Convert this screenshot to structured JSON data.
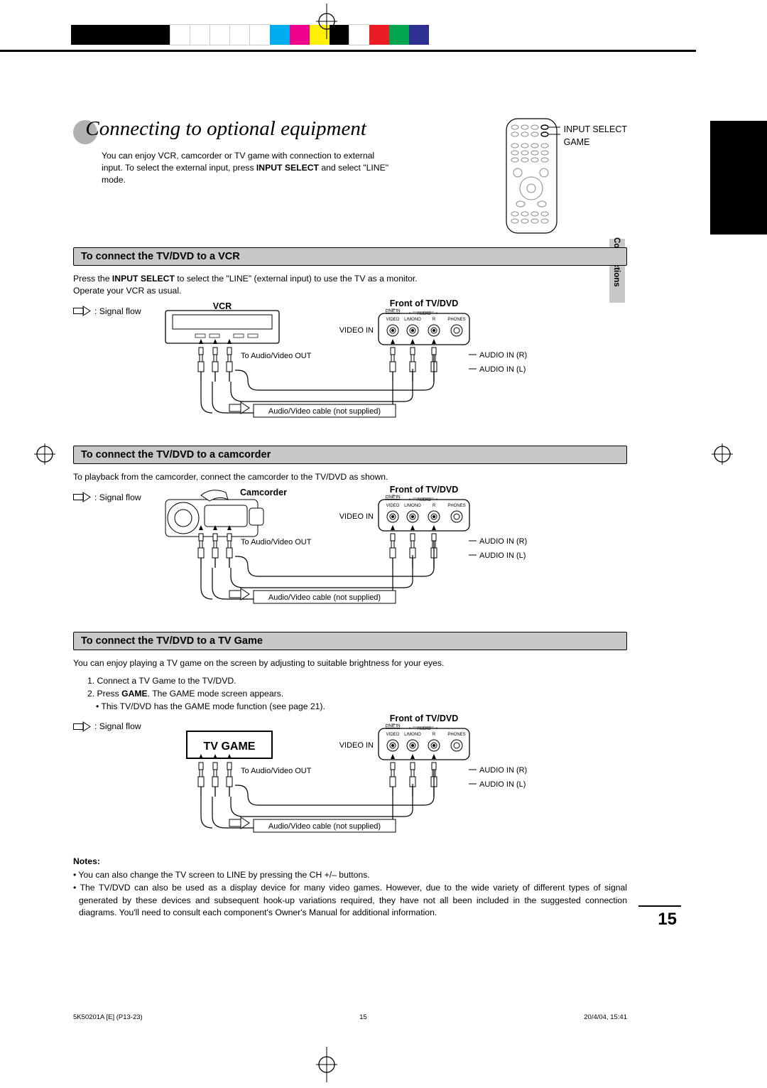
{
  "colorbar": [
    "#000000",
    "#000000",
    "#000000",
    "#000000",
    "#000000",
    "#ffffff",
    "#ffffff",
    "#ffffff",
    "#ffffff",
    "#ffffff",
    "#00adee",
    "#ed008c",
    "#fff100",
    "#000000",
    "#ffffff",
    "#ec1c24",
    "#00a551",
    "#2e3092"
  ],
  "title": "Connecting to optional equipment",
  "intro_lines": [
    "You can enjoy VCR, camcorder or TV game with connection to external",
    "input. To select the external input, press ",
    "INPUT SELECT",
    " and select \"LINE\"",
    "mode."
  ],
  "remote_labels": [
    "INPUT SELECT",
    "GAME"
  ],
  "section_tab": "Connections",
  "sec1": {
    "head": "To connect the TV/DVD to a VCR",
    "body_lines": [
      "Press the ",
      "INPUT SELECT",
      " to select the \"LINE\" (external input) to use the TV as a monitor.",
      "Operate your VCR as usual."
    ],
    "signal_flow": ": Signal flow",
    "device_label": "VCR",
    "front_label": "Front of TV/DVD",
    "video_in": "VIDEO IN",
    "to_avout": "To Audio/Video OUT",
    "audio_r": "AUDIO IN (R)",
    "audio_l": "AUDIO IN (L)",
    "cable_note": "Audio/Video cable (not supplied)",
    "panel_labels": [
      "LINE IN",
      "VIDEO",
      "L/MONO",
      "AUDIO",
      "R",
      "PHONES"
    ]
  },
  "sec2": {
    "head": "To connect the TV/DVD to a camcorder",
    "body": "To playback from the camcorder, connect the camcorder to the TV/DVD as shown.",
    "signal_flow": ": Signal flow",
    "device_label": "Camcorder",
    "front_label": "Front of TV/DVD",
    "video_in": "VIDEO IN",
    "to_avout": "To Audio/Video OUT",
    "audio_r": "AUDIO IN (R)",
    "audio_l": "AUDIO IN (L)",
    "cable_note": "Audio/Video cable (not supplied)",
    "panel_labels": [
      "LINE IN",
      "VIDEO",
      "L/MONO",
      "AUDIO",
      "R",
      "PHONES"
    ]
  },
  "sec3": {
    "head": "To connect the TV/DVD to a TV Game",
    "body": "You can enjoy playing a TV game on the screen by adjusting to suitable brightness for your eyes.",
    "steps_prefix": [
      "1. Connect a TV Game to the TV/DVD.",
      "2. Press "
    ],
    "game_bold": "GAME",
    "steps_suffix": ". The GAME mode screen appears.",
    "bullet": "• This TV/DVD has the GAME mode function (see page 21).",
    "signal_flow": ": Signal flow",
    "device_label": "TV GAME",
    "front_label": "Front of TV/DVD",
    "video_in": "VIDEO IN",
    "to_avout": "To Audio/Video OUT",
    "audio_r": "AUDIO IN (R)",
    "audio_l": "AUDIO IN (L)",
    "cable_note": "Audio/Video cable (not supplied)",
    "panel_labels": [
      "LINE IN",
      "VIDEO",
      "L/MONO",
      "AUDIO",
      "R",
      "PHONES"
    ]
  },
  "notes_head": "Notes:",
  "notes": [
    "• You can also change the TV screen to LINE by pressing the CH +/– buttons.",
    "• The TV/DVD can also be used as a display device for many video games. However, due to the wide variety of different types of signal generated by these devices and subsequent hook-up variations required, they have not all been included in the suggested connection diagrams. You'll need to consult each component's Owner's Manual for additional information."
  ],
  "page_number": "15",
  "footer_left": "5K50201A [E] (P13-23)",
  "footer_mid": "15",
  "footer_right": "20/4/04, 15:41"
}
